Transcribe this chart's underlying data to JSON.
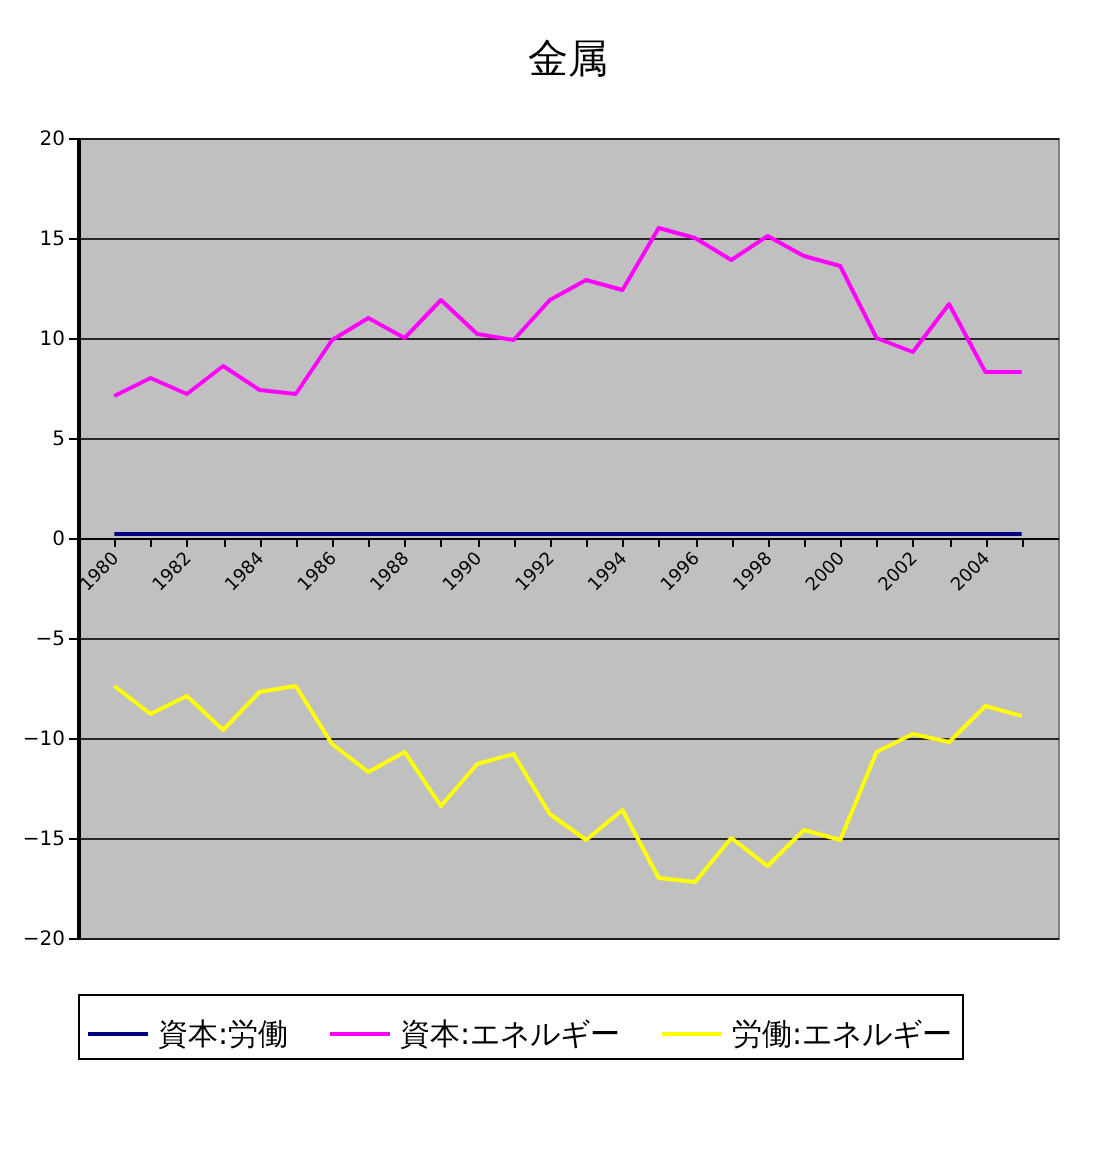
{
  "chart_data": {
    "type": "line",
    "title": "金属",
    "categories": [
      "1980",
      null,
      "1982",
      null,
      "1984",
      null,
      "1986",
      null,
      "1988",
      null,
      "1990",
      null,
      "1992",
      null,
      "1994",
      null,
      "1996",
      null,
      "1998",
      null,
      "2000",
      null,
      "2002",
      null,
      "2004",
      null
    ],
    "series": [
      {
        "name": "資本:労働",
        "color": "#000080",
        "values": [
          0.2,
          0.2,
          0.2,
          0.2,
          0.2,
          0.2,
          0.2,
          0.2,
          0.2,
          0.2,
          0.2,
          0.2,
          0.2,
          0.2,
          0.2,
          0.2,
          0.2,
          0.2,
          0.2,
          0.2,
          0.2,
          0.2,
          0.2,
          0.2,
          0.2,
          0.2
        ]
      },
      {
        "name": "資本:エネルギー",
        "color": "#ff00ff",
        "values": [
          7.1,
          8.0,
          7.2,
          8.6,
          7.4,
          7.2,
          9.9,
          11.0,
          10.0,
          11.9,
          10.2,
          9.9,
          11.9,
          12.9,
          12.4,
          15.5,
          15.0,
          13.9,
          15.1,
          14.1,
          13.6,
          10.0,
          9.3,
          11.7,
          8.3,
          8.3
        ]
      },
      {
        "name": "労働:エネルギー",
        "color": "#ffff00",
        "values": [
          -7.4,
          -8.8,
          -7.9,
          -9.6,
          -7.7,
          -7.4,
          -10.3,
          -11.7,
          -10.7,
          -13.4,
          -11.3,
          -10.8,
          -13.8,
          -15.1,
          -13.6,
          -17.0,
          -17.2,
          -15.0,
          -16.4,
          -14.6,
          -15.1,
          -10.7,
          -9.8,
          -10.2,
          -8.4,
          -8.9
        ]
      }
    ],
    "ylim": [
      -20,
      20
    ],
    "yticks": [
      -20,
      -15,
      -10,
      -5,
      0,
      5,
      10,
      15,
      20
    ],
    "grid": "y",
    "legend": "bottom",
    "marker": "none",
    "line_style": "solid"
  }
}
